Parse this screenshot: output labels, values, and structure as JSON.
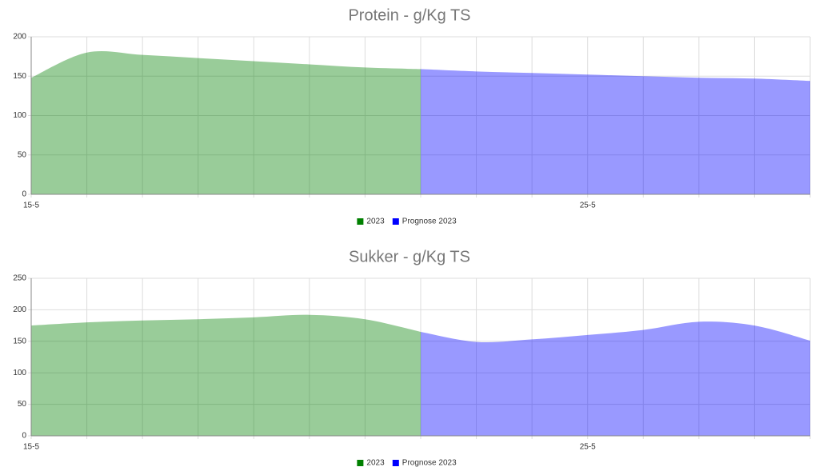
{
  "chart_data": [
    {
      "type": "area",
      "title": "Protein - g/Kg TS",
      "categories": [
        "15-5",
        null,
        null,
        null,
        null,
        null,
        null,
        null,
        null,
        null,
        "25-5",
        null,
        null,
        null,
        null
      ],
      "series": [
        {
          "name": "2023",
          "color": "#008000",
          "values": [
            148,
            180,
            177,
            173,
            169,
            165,
            161,
            159,
            null,
            null,
            null,
            null,
            null,
            null,
            null
          ]
        },
        {
          "name": "Prognose 2023",
          "color": "#0000ff",
          "values": [
            null,
            null,
            null,
            null,
            null,
            null,
            null,
            159,
            156,
            154,
            152,
            150,
            148,
            147,
            144
          ]
        }
      ],
      "ylim": [
        0,
        200
      ],
      "yticks": [
        0,
        50,
        100,
        150,
        200
      ],
      "grid": true,
      "legend": "bottom"
    },
    {
      "type": "area",
      "title": "Sukker - g/Kg TS",
      "categories": [
        "15-5",
        null,
        null,
        null,
        null,
        null,
        null,
        null,
        null,
        null,
        "25-5",
        null,
        null,
        null,
        null
      ],
      "series": [
        {
          "name": "2023",
          "color": "#008000",
          "values": [
            175,
            180,
            183,
            185,
            188,
            192,
            185,
            165,
            null,
            null,
            null,
            null,
            null,
            null,
            null
          ]
        },
        {
          "name": "Prognose 2023",
          "color": "#0000ff",
          "values": [
            null,
            null,
            null,
            null,
            null,
            null,
            null,
            165,
            149,
            153,
            160,
            168,
            181,
            175,
            151
          ]
        }
      ],
      "ylim": [
        0,
        250
      ],
      "yticks": [
        0,
        50,
        100,
        150,
        200,
        250
      ],
      "grid": true,
      "legend": "bottom"
    }
  ]
}
